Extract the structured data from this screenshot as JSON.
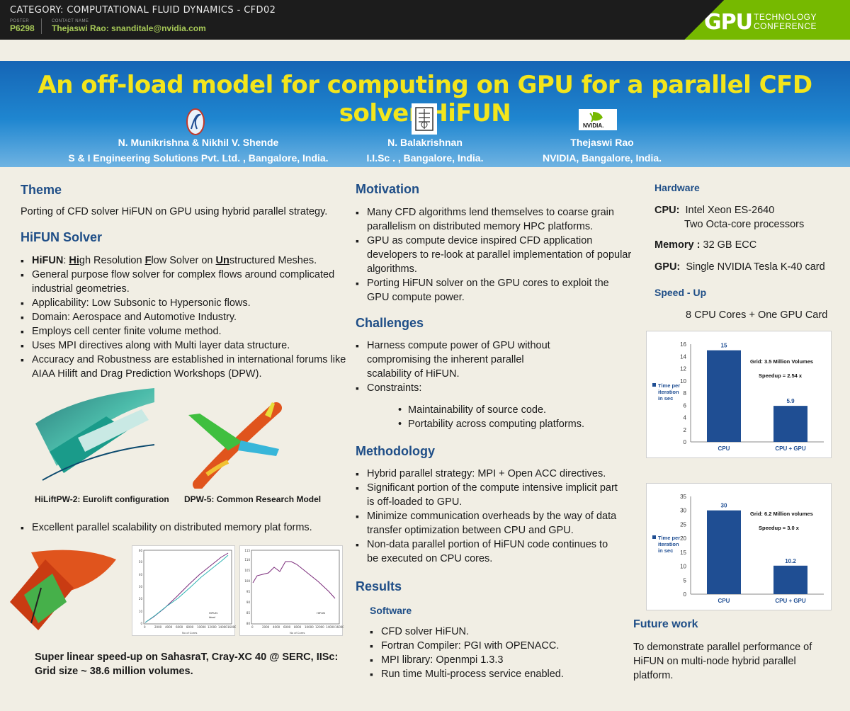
{
  "header": {
    "category": "CATEGORY: COMPUTATIONAL FLUID DYNAMICS - CFD02",
    "poster_label": "POSTER",
    "poster_number": "P6298",
    "contact_label": "CONTACT NAME",
    "contact": "Thejaswi Rao: snanditale@nvidia.com",
    "brand_main": "GPU",
    "brand_sub_1": "TECHNOLOGY",
    "brand_sub_2": "CONFERENCE"
  },
  "title": "An off-load model for computing on GPU for a parallel CFD solver HiFUN",
  "authors": [
    {
      "names": "N. Munikrishna & Nikhil V. Shende",
      "org": "S & I Engineering Solutions Pvt. Ltd. , Bangalore, India."
    },
    {
      "names": "N. Balakrishnan",
      "org": "I.I.Sc . ,  Bangalore, India."
    },
    {
      "names": "Thejaswi  Rao",
      "org": "NVIDIA, Bangalore, India."
    }
  ],
  "nvidia_logo_text": "NVIDIA.",
  "theme": {
    "heading": "Theme",
    "text": "Porting of CFD solver HiFUN on GPU using hybrid parallel strategy."
  },
  "hifun": {
    "heading": "HiFUN Solver",
    "b1_a": "HiFUN",
    "b1_b": ": ",
    "b1_c": "Hi",
    "b1_d": "gh Resolution ",
    "b1_e": "F",
    "b1_f": "low Solver on ",
    "b1_g": "Un",
    "b1_h": "structured  Meshes.",
    "bullets": [
      "General purpose flow solver for complex flows around complicated industrial geometries.",
      "Applicability: Low Subsonic to Hypersonic flows.",
      "Domain: Aerospace and Automotive Industry.",
      "Employs cell center finite volume method.",
      "Uses MPI directives along with Multi layer data structure.",
      "Accuracy and Robustness are established in international forums like AIAA Hilift and Drag Prediction Workshops (DPW)."
    ],
    "cap1": "HiLiftPW-2: Eurolift configuration",
    "cap2": "DPW-5: Common Research Model",
    "scal": "Excellent parallel scalability on distributed memory plat forms.",
    "superlinear_1": "Super linear speed-up on SahasraT, Cray-XC 40 @ SERC, IISc:",
    "superlinear_2": "Grid size ~ 38.6 million volumes."
  },
  "motivation": {
    "heading": "Motivation",
    "bullets": [
      "Many  CFD algorithms lend themselves to coarse grain parallelism on distributed memory HPC platforms.",
      "GPU as compute device inspired CFD application developers to re-look at parallel implementation of popular algorithms.",
      "Porting HiFUN solver on the GPU cores to exploit the GPU compute power."
    ]
  },
  "challenges": {
    "heading": "Challenges",
    "bullets": [
      "Harness compute power of GPU without compromising the inherent parallel scalability of HiFUN.",
      "Constraints:"
    ],
    "sub": [
      "Maintainability of source  code.",
      "Portability across computing platforms."
    ]
  },
  "methodology": {
    "heading": "Methodology",
    "bullets": [
      "Hybrid parallel strategy: MPI + Open ACC directives.",
      "Significant portion of the compute intensive implicit part is off-loaded to GPU.",
      "Minimize communication overheads by the way of data transfer optimization between CPU and GPU.",
      "Non-data parallel portion of HiFUN code continues to  be executed on CPU cores."
    ]
  },
  "results": {
    "heading": "Results",
    "software_heading": "Software",
    "bullets": [
      "CFD solver HiFUN.",
      "Fortran Compiler: PGI with OPENACC.",
      "MPI library: Openmpi 1.3.3",
      "Run time Multi-process service enabled."
    ]
  },
  "hardware": {
    "heading": "Hardware",
    "cpu_label": "CPU:",
    "cpu_1": "Intel Xeon ES-2640",
    "cpu_2": "Two Octa-core processors",
    "mem_label": "Memory :",
    "mem": "32 GB ECC",
    "gpu_label": "GPU:",
    "gpu": "Single NVIDIA Tesla K-40 card"
  },
  "speedup": {
    "heading": "Speed - Up",
    "subtitle": "8  CPU Cores + One GPU Card"
  },
  "future": {
    "heading": "Future work",
    "text": "To demonstrate parallel performance of HiFUN on multi-node hybrid parallel platform."
  },
  "chart_data": [
    {
      "type": "bar",
      "categories": [
        "CPU",
        "CPU + GPU"
      ],
      "values": [
        15,
        5.9
      ],
      "value_labels": [
        "15",
        "5.9"
      ],
      "ylim": [
        0,
        16
      ],
      "yticks": [
        0,
        2,
        4,
        6,
        8,
        10,
        12,
        14,
        16
      ],
      "ylabel": "",
      "legend": "Time per iteration in sec",
      "annotation_1": "Grid: 3.5 Million Volumes",
      "annotation_2": "Speedup = 2.54 x",
      "color": "#1f4e93",
      "grid": false
    },
    {
      "type": "bar",
      "categories": [
        "CPU",
        "CPU + GPU"
      ],
      "values": [
        30,
        10.2
      ],
      "value_labels": [
        "30",
        "10.2"
      ],
      "ylim": [
        0,
        35
      ],
      "yticks": [
        0,
        5,
        10,
        15,
        20,
        25,
        30,
        35
      ],
      "ylabel": "",
      "legend": "Time per iteration in sec",
      "annotation_1": "Grid: 6.2 Million volumes",
      "annotation_2": "Speedup = 3.0  x",
      "color": "#1f4e93",
      "grid": false
    }
  ],
  "scaling_charts": {
    "left_legend": [
      "HiFUN",
      "Ideal"
    ],
    "left_xticks": [
      "0",
      "2000",
      "4000",
      "6000",
      "8000",
      "10000",
      "12000",
      "14000",
      "16000"
    ],
    "left_yticks": [
      "0",
      "10",
      "20",
      "30",
      "40",
      "50",
      "60"
    ],
    "right_legend": [
      "HiFUN"
    ],
    "right_xticks": [
      "0",
      "2000",
      "4000",
      "6000",
      "8000",
      "10000",
      "12000",
      "14000",
      "16000"
    ],
    "right_yticks": [
      "80",
      "85",
      "90",
      "95",
      "100",
      "105",
      "110",
      "115"
    ],
    "xlabel": "No of Cores"
  }
}
